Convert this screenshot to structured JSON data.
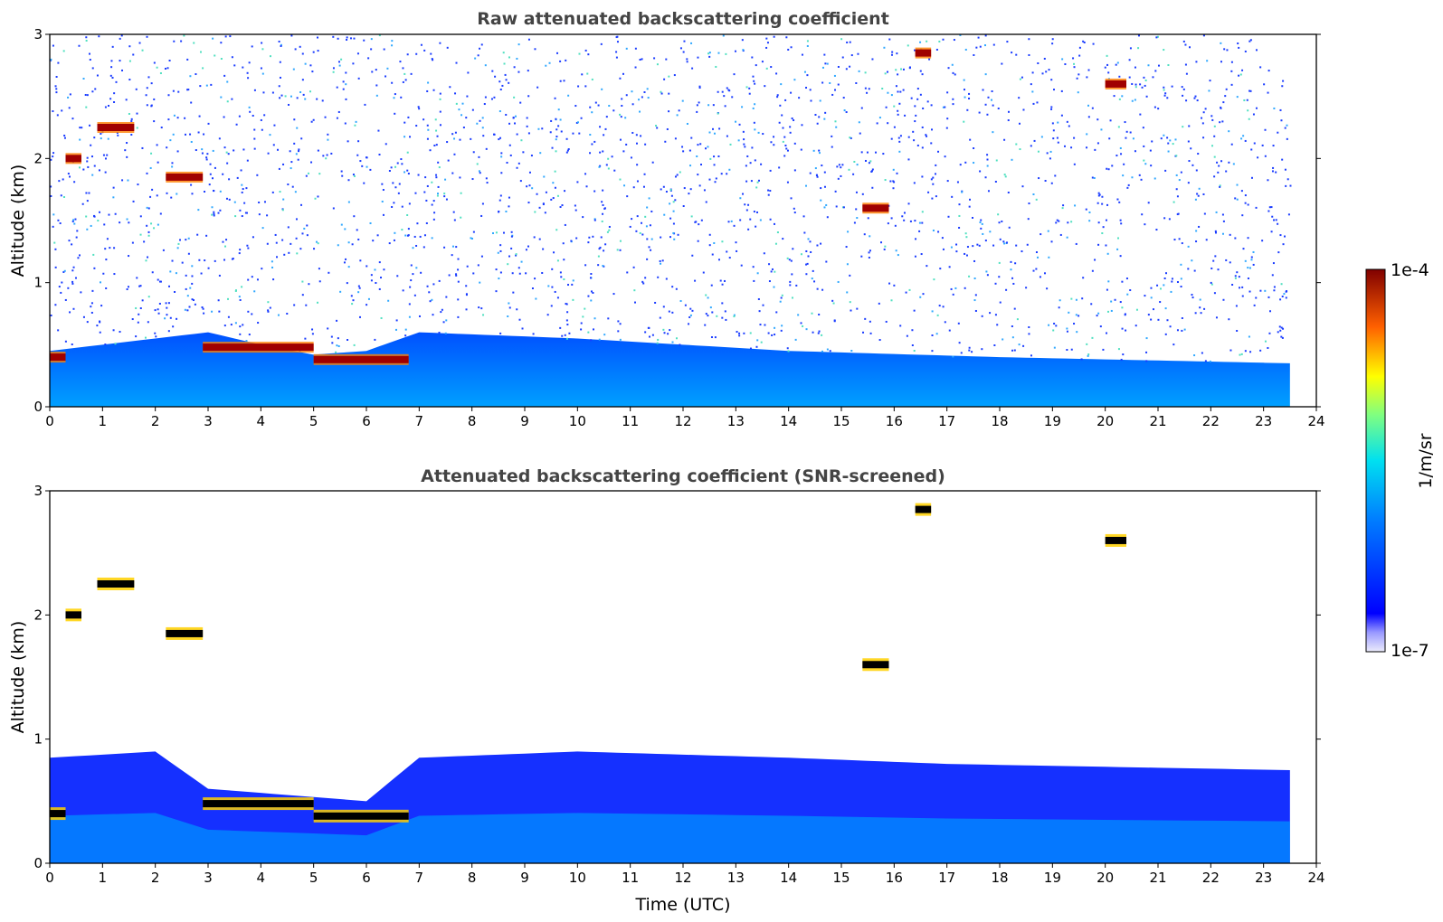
{
  "chart_data": [
    {
      "type": "heatmap",
      "title": "Raw attenuated backscattering coefficient",
      "xlabel": "",
      "ylabel": "Altitude (km)",
      "xlim": [
        0,
        24
      ],
      "ylim": [
        0,
        3
      ],
      "x_ticks": [
        "0",
        "1",
        "2",
        "3",
        "4",
        "5",
        "6",
        "7",
        "8",
        "9",
        "10",
        "11",
        "12",
        "13",
        "14",
        "15",
        "16",
        "17",
        "18",
        "19",
        "20",
        "21",
        "22",
        "23",
        "24"
      ],
      "y_ticks": [
        "0",
        "1",
        "2",
        "3"
      ],
      "boundary_layer": [
        {
          "t": 0.0,
          "top_km": 0.45
        },
        {
          "t": 2.0,
          "top_km": 0.55
        },
        {
          "t": 3.0,
          "top_km": 0.6
        },
        {
          "t": 4.0,
          "top_km": 0.5
        },
        {
          "t": 5.0,
          "top_km": 0.42
        },
        {
          "t": 6.0,
          "top_km": 0.45
        },
        {
          "t": 7.0,
          "top_km": 0.6
        },
        {
          "t": 10.0,
          "top_km": 0.55
        },
        {
          "t": 14.0,
          "top_km": 0.45
        },
        {
          "t": 18.0,
          "top_km": 0.4
        },
        {
          "t": 23.5,
          "top_km": 0.35
        }
      ],
      "strong_layers": [
        {
          "t0": 0.0,
          "t1": 0.3,
          "alt_km": 0.4,
          "value": "1e-4"
        },
        {
          "t0": 0.3,
          "t1": 0.6,
          "alt_km": 2.0,
          "value": "1e-4"
        },
        {
          "t0": 0.9,
          "t1": 1.6,
          "alt_km": 2.25,
          "value": "1e-4"
        },
        {
          "t0": 2.2,
          "t1": 2.9,
          "alt_km": 1.85,
          "value": "1e-4"
        },
        {
          "t0": 2.9,
          "t1": 5.0,
          "alt_km": 0.48,
          "value": "1e-4"
        },
        {
          "t0": 5.0,
          "t1": 6.8,
          "alt_km": 0.38,
          "value": "1e-4"
        },
        {
          "t0": 15.4,
          "t1": 15.9,
          "alt_km": 1.6,
          "value": "1e-4"
        },
        {
          "t0": 16.4,
          "t1": 16.7,
          "alt_km": 2.85,
          "value": "1e-4"
        },
        {
          "t0": 20.0,
          "t1": 20.4,
          "alt_km": 2.6,
          "value": "1e-4"
        }
      ]
    },
    {
      "type": "heatmap",
      "title": "Attenuated backscattering coefficient (SNR-screened)",
      "xlabel": "Time (UTC)",
      "ylabel": "Altitude (km)",
      "xlim": [
        0,
        24
      ],
      "ylim": [
        0,
        3
      ],
      "x_ticks": [
        "0",
        "1",
        "2",
        "3",
        "4",
        "5",
        "6",
        "7",
        "8",
        "9",
        "10",
        "11",
        "12",
        "13",
        "14",
        "15",
        "16",
        "17",
        "18",
        "19",
        "20",
        "21",
        "22",
        "23",
        "24"
      ],
      "y_ticks": [
        "0",
        "1",
        "2",
        "3"
      ],
      "screened_boundary_layer": [
        {
          "t": 0.0,
          "top_km": 0.85
        },
        {
          "t": 2.0,
          "top_km": 0.9
        },
        {
          "t": 3.0,
          "top_km": 0.6
        },
        {
          "t": 6.0,
          "top_km": 0.5
        },
        {
          "t": 7.0,
          "top_km": 0.85
        },
        {
          "t": 10.0,
          "top_km": 0.9
        },
        {
          "t": 14.0,
          "top_km": 0.85
        },
        {
          "t": 17.0,
          "top_km": 0.8
        },
        {
          "t": 23.5,
          "top_km": 0.75
        }
      ]
    }
  ],
  "colorbar": {
    "max_label": "1e-4",
    "min_label": "1e-7",
    "units": "1/m/sr",
    "colormap": "jet",
    "colors": [
      "#e8e8f8",
      "#0000ff",
      "#00c8ff",
      "#ffff00",
      "#ff4000",
      "#800000"
    ]
  }
}
